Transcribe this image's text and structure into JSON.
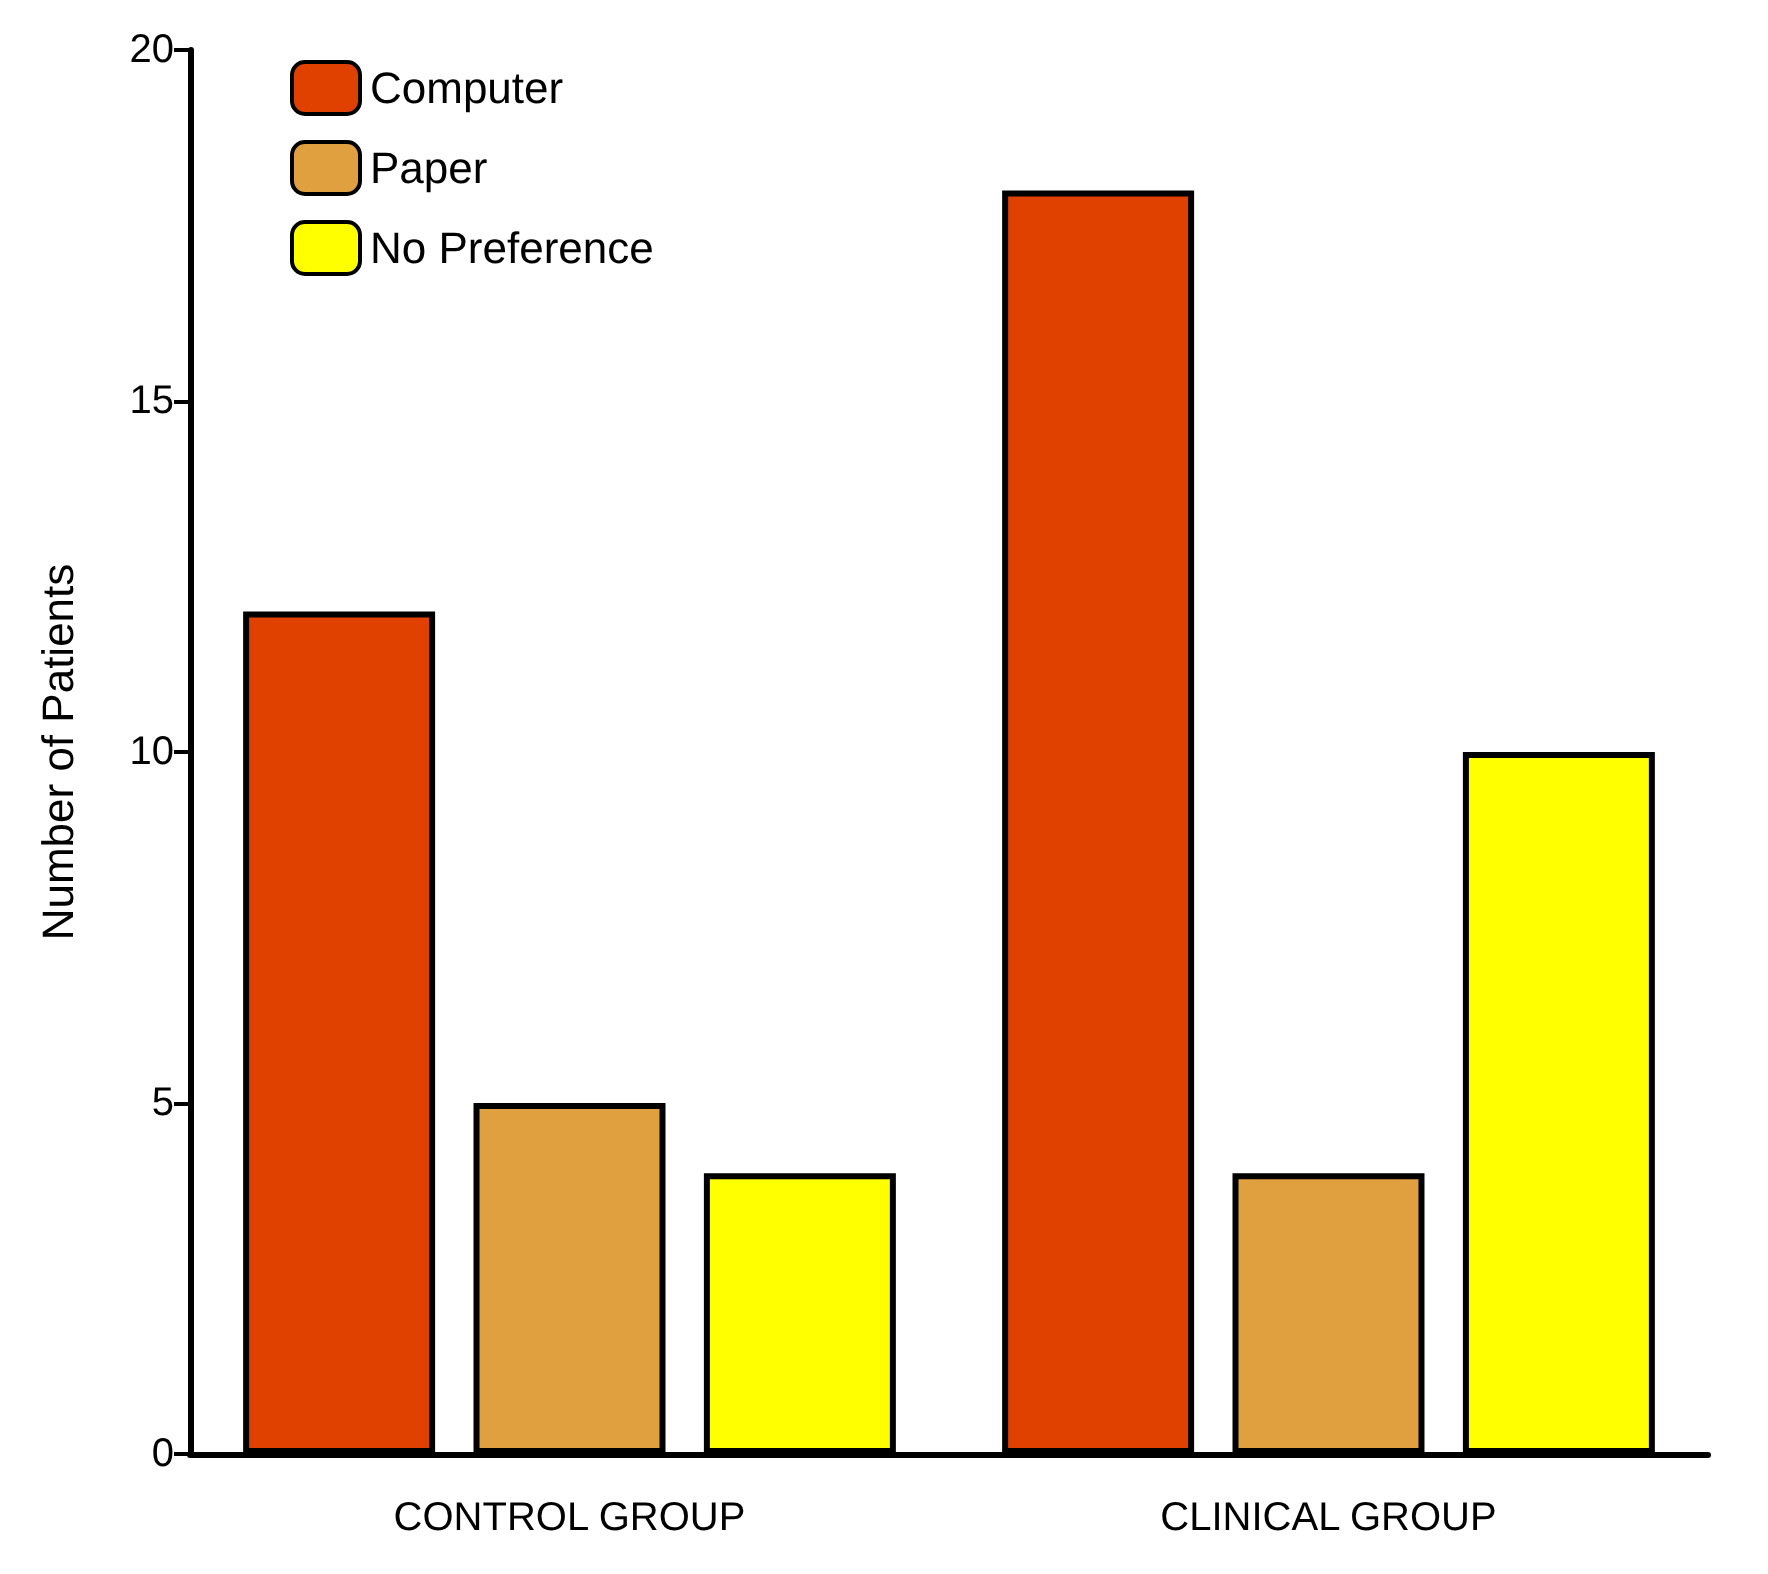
{
  "chart_data": {
    "type": "bar",
    "ylabel": "Number of Patients",
    "categories": [
      "CONTROL GROUP",
      "CLINICAL GROUP"
    ],
    "series": [
      {
        "name": "Computer",
        "color": "#e04000",
        "values": [
          12,
          18
        ]
      },
      {
        "name": "Paper",
        "color": "#e0a040",
        "values": [
          5,
          4
        ]
      },
      {
        "name": "No Preference",
        "color": "#ffff00",
        "values": [
          4,
          10
        ]
      }
    ],
    "ylim": [
      0,
      20
    ],
    "yticks": [
      0,
      5,
      10,
      15,
      20
    ],
    "grid": false,
    "legend": "top left"
  }
}
